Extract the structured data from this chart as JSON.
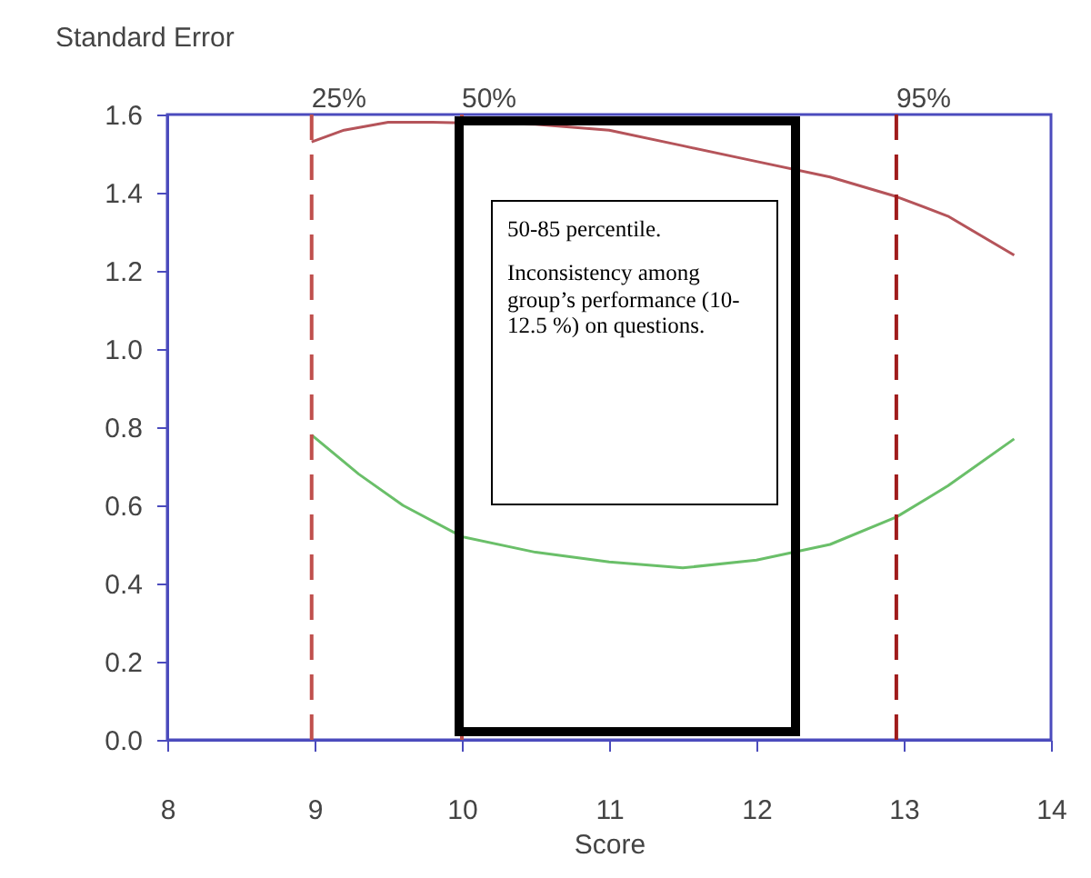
{
  "chart_data": {
    "type": "line",
    "ylabel": "Standard Error",
    "xlabel": "Score",
    "xlim": [
      8,
      14
    ],
    "xticks": [
      8,
      9,
      10,
      11,
      12,
      13,
      14
    ],
    "ylim": [
      0,
      1.6
    ],
    "yticks": [
      {
        "value": 0,
        "label": "0.0"
      },
      {
        "value": 0.2,
        "label": "0.2"
      },
      {
        "value": 0.4,
        "label": "0.4"
      },
      {
        "value": 0.6,
        "label": "0.6"
      },
      {
        "value": 0.8,
        "label": "0.8"
      },
      {
        "value": 1.0,
        "label": "1.0"
      },
      {
        "value": 1.2,
        "label": "1.2"
      },
      {
        "value": 1.4,
        "label": "1.4"
      },
      {
        "value": 1.6,
        "label": "1.6"
      }
    ],
    "series": [
      {
        "color": "#b5545a",
        "x": [
          8.98,
          9.2,
          9.5,
          9.8,
          10.5,
          11.0,
          11.5,
          12.0,
          12.5,
          12.95,
          13.3,
          13.75
        ],
        "values": [
          1.53,
          1.56,
          1.58,
          1.58,
          1.575,
          1.56,
          1.52,
          1.48,
          1.44,
          1.39,
          1.34,
          1.24
        ]
      },
      {
        "color": "#6abf69",
        "x": [
          8.98,
          9.3,
          9.6,
          10.0,
          10.5,
          11.0,
          11.5,
          12.0,
          12.5,
          12.95,
          13.3,
          13.75
        ],
        "values": [
          0.78,
          0.68,
          0.6,
          0.52,
          0.48,
          0.455,
          0.44,
          0.46,
          0.5,
          0.57,
          0.65,
          0.77
        ]
      }
    ],
    "ref_lines": [
      {
        "axis": "x",
        "value": 8.98,
        "color": "#c0504d",
        "line_style": "dashed"
      },
      {
        "axis": "x",
        "value": 10.0,
        "color": "#c0504d",
        "line_style": "dashed"
      },
      {
        "axis": "x",
        "value": 12.95,
        "color": "#a01c1c",
        "line_style": "dashed"
      }
    ],
    "annotations": [
      {
        "text": "25%",
        "x": 8.98,
        "y": 1.6
      },
      {
        "text": "50%",
        "x": 10.0,
        "y": 1.6
      },
      {
        "text": "95%",
        "x": 12.95,
        "y": 1.6
      },
      "50-85 percentile.",
      "Inconsistency among group’s performance (10-12.5 %) on questions."
    ],
    "grid": false,
    "marker": "none",
    "line_style": "solid"
  }
}
